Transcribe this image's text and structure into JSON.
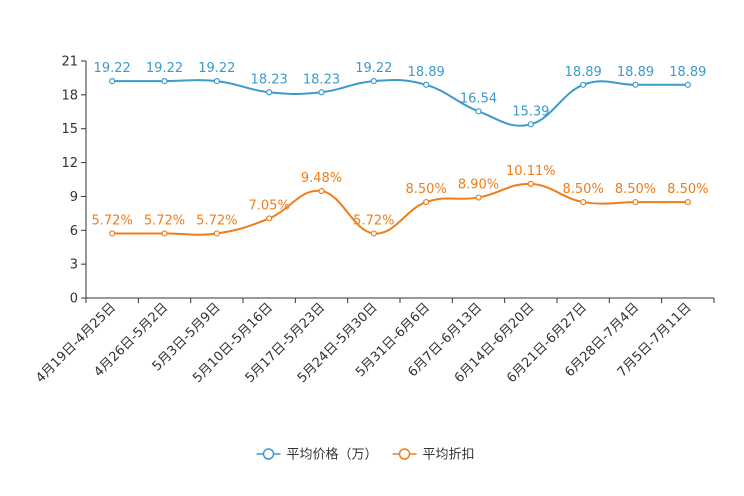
{
  "chart_data": {
    "type": "line",
    "title": "",
    "xlabel": "",
    "ylabel": "",
    "ylim": [
      0,
      21
    ],
    "yticks": [
      0,
      3,
      6,
      9,
      12,
      15,
      18,
      21
    ],
    "grid": false,
    "legend_position": "bottom",
    "categories": [
      "4月19日-4月25日",
      "4月26日-5月2日",
      "5月3日-5月9日",
      "5月10日-5月16日",
      "5月17日-5月23日",
      "5月24日-5月30日",
      "5月31日-6月6日",
      "6月7日-6月13日",
      "6月14日-6月20日",
      "6月21日-6月27日",
      "6月28日-7月4日",
      "7月5日-7月11日"
    ],
    "series": [
      {
        "name": "平均价格（万）",
        "color": "#3c9bcc",
        "values": [
          19.22,
          19.22,
          19.22,
          18.23,
          18.23,
          19.22,
          18.89,
          16.54,
          15.39,
          18.89,
          18.89,
          18.89
        ],
        "labels": [
          "19.22",
          "19.22",
          "19.22",
          "18.23",
          "18.23",
          "19.22",
          "18.89",
          "16.54",
          "15.39",
          "18.89",
          "18.89",
          "18.89"
        ]
      },
      {
        "name": "平均折扣",
        "color": "#f07d1a",
        "values": [
          5.72,
          5.72,
          5.72,
          7.05,
          9.48,
          5.72,
          8.5,
          8.9,
          10.11,
          8.5,
          8.5,
          8.5
        ],
        "labels": [
          "5.72%",
          "5.72%",
          "5.72%",
          "7.05%",
          "9.48%",
          "5.72%",
          "8.50%",
          "8.90%",
          "10.11%",
          "8.50%",
          "8.50%",
          "8.50%"
        ]
      }
    ]
  }
}
